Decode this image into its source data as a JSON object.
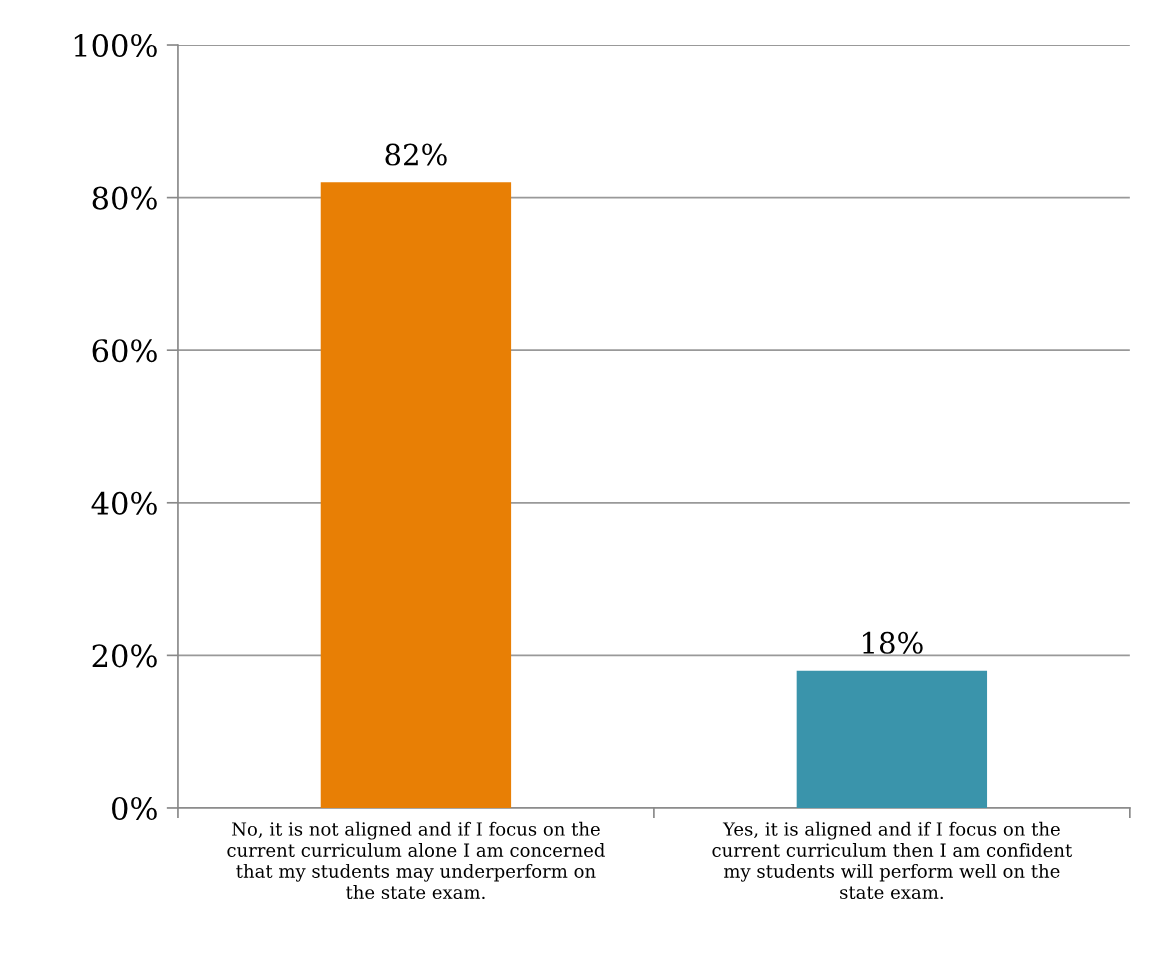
{
  "chart_data": {
    "type": "bar",
    "categories": [
      "No, it is not aligned and if I focus on the\ncurrent curriculum alone I am concerned\nthat my students may underperform on\nthe state exam.",
      "Yes, it is aligned and if I focus on the\ncurrent curriculum then I am confident\nmy students will perform well on the\nstate exam."
    ],
    "values": [
      82,
      18
    ],
    "colors": [
      "#e87f05",
      "#3a94ab"
    ],
    "value_labels": [
      "82%",
      "18%"
    ],
    "ylim": [
      0,
      100
    ],
    "yticks": [
      {
        "value": 0,
        "label": "0%"
      },
      {
        "value": 20,
        "label": "20%"
      },
      {
        "value": 40,
        "label": "40%"
      },
      {
        "value": 60,
        "label": "60%"
      },
      {
        "value": 80,
        "label": "80%"
      },
      {
        "value": 100,
        "label": "100%"
      }
    ],
    "grid": "y"
  }
}
